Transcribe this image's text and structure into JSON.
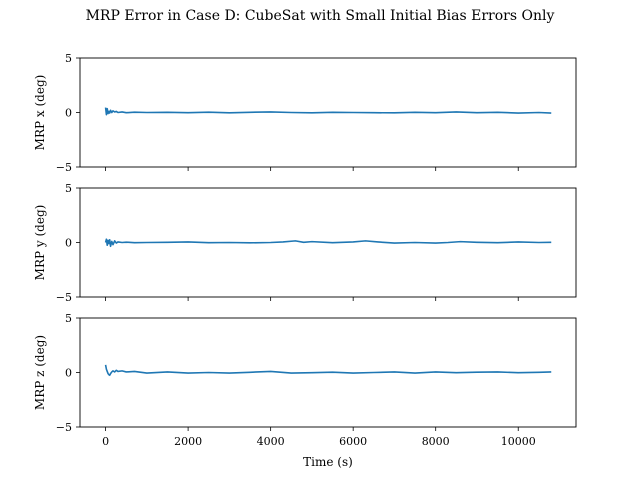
{
  "chart_data": {
    "type": "line",
    "title": "MRP Error in Case D: CubeSat with Small Initial Bias Errors Only",
    "xlabel": "Time (s)",
    "xlim": [
      -620,
      11400
    ],
    "xticks": [
      0,
      2000,
      4000,
      6000,
      8000,
      10000
    ],
    "line_color": "#1f77b4",
    "subplots": [
      {
        "ylabel": "MRP x (deg)",
        "ylim": [
          -5,
          5
        ],
        "yticks": [
          -5,
          0,
          5
        ],
        "series": [
          {
            "x": [
              0,
              20,
              40,
              60,
              80,
              100,
              120,
              150,
              180,
              220,
              260,
              300,
              400,
              500,
              700,
              1000,
              1500,
              2000,
              2500,
              3000,
              3500,
              4000,
              4500,
              5000,
              5500,
              6000,
              6500,
              7000,
              7500,
              8000,
              8500,
              9000,
              9500,
              10000,
              10500,
              10800
            ],
            "values": [
              0.45,
              -0.2,
              0.35,
              -0.1,
              0.1,
              -0.05,
              0.2,
              0.0,
              0.15,
              0.05,
              0.1,
              0.0,
              0.05,
              -0.02,
              0.03,
              0.0,
              0.02,
              -0.02,
              0.03,
              -0.03,
              0.02,
              0.05,
              0.0,
              -0.03,
              0.02,
              0.0,
              -0.02,
              -0.03,
              0.02,
              -0.02,
              0.05,
              -0.02,
              0.02,
              -0.05,
              0.0,
              -0.05
            ]
          }
        ]
      },
      {
        "ylabel": "MRP y (deg)",
        "ylim": [
          -5,
          5
        ],
        "yticks": [
          -5,
          0,
          5
        ],
        "series": [
          {
            "x": [
              0,
              20,
              40,
              60,
              80,
              100,
              120,
              150,
              180,
              220,
              260,
              300,
              400,
              500,
              700,
              1000,
              1500,
              2000,
              2500,
              3000,
              3500,
              4000,
              4300,
              4600,
              4800,
              5000,
              5500,
              6000,
              6300,
              6600,
              7000,
              7500,
              8000,
              8300,
              8600,
              9000,
              9500,
              10000,
              10500,
              10800
            ],
            "values": [
              0.0,
              0.3,
              -0.25,
              0.2,
              -0.1,
              0.25,
              -0.35,
              0.1,
              -0.2,
              0.15,
              -0.05,
              0.05,
              0.0,
              0.03,
              -0.02,
              0.0,
              0.02,
              0.05,
              -0.02,
              0.0,
              -0.03,
              0.0,
              0.05,
              0.15,
              0.02,
              0.08,
              -0.02,
              0.05,
              0.15,
              0.05,
              -0.05,
              0.0,
              -0.05,
              0.0,
              0.08,
              0.02,
              -0.02,
              0.05,
              0.0,
              0.02
            ]
          }
        ]
      },
      {
        "ylabel": "MRP z (deg)",
        "ylim": [
          -5,
          5
        ],
        "yticks": [
          -5,
          0,
          5
        ],
        "series": [
          {
            "x": [
              0,
              20,
              40,
              60,
              80,
              100,
              120,
              150,
              180,
              220,
              260,
              300,
              400,
              500,
              700,
              1000,
              1500,
              2000,
              2500,
              3000,
              3500,
              4000,
              4500,
              5000,
              5500,
              6000,
              6500,
              7000,
              7500,
              8000,
              8500,
              9000,
              9500,
              10000,
              10500,
              10800
            ],
            "values": [
              0.7,
              0.3,
              0.1,
              -0.1,
              -0.2,
              -0.25,
              -0.1,
              0.05,
              0.15,
              0.05,
              0.2,
              0.1,
              0.15,
              0.05,
              0.1,
              -0.05,
              0.05,
              -0.05,
              0.0,
              -0.05,
              0.02,
              0.1,
              -0.05,
              -0.02,
              0.03,
              -0.05,
              0.0,
              0.05,
              -0.05,
              0.05,
              -0.02,
              0.03,
              0.05,
              -0.02,
              0.02,
              0.05
            ]
          }
        ]
      }
    ]
  }
}
